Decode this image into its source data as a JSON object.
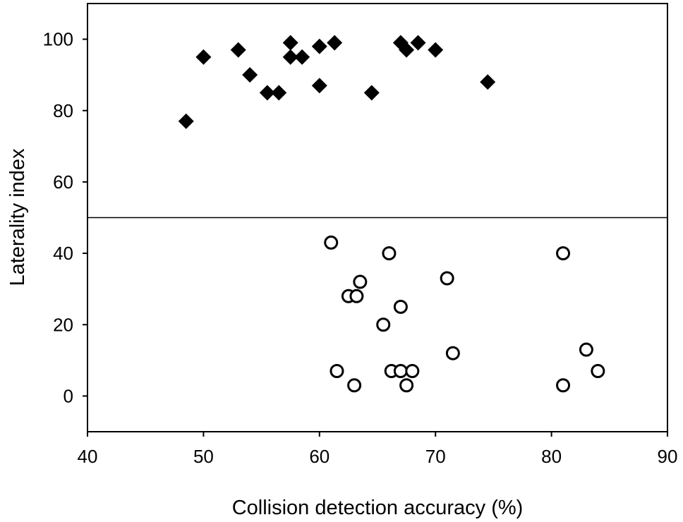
{
  "chart_data": {
    "type": "scatter",
    "xlabel": "Collision detection accuracy (%)",
    "ylabel": "Laterality index",
    "xlim": [
      40,
      90
    ],
    "ylim": [
      -10,
      110
    ],
    "xticks": [
      40,
      50,
      60,
      70,
      80,
      90
    ],
    "yticks": [
      0,
      20,
      40,
      60,
      80,
      100
    ],
    "grid": false,
    "reference_line": {
      "y": 50
    },
    "series": [
      {
        "marker": "filled-diamond",
        "color": "#000000",
        "points": [
          [
            48.5,
            77
          ],
          [
            50,
            95
          ],
          [
            53,
            97
          ],
          [
            54,
            90
          ],
          [
            55.5,
            85
          ],
          [
            56.5,
            85
          ],
          [
            57.5,
            99
          ],
          [
            57.5,
            95
          ],
          [
            58.5,
            95
          ],
          [
            60,
            98
          ],
          [
            60,
            87
          ],
          [
            61.3,
            99
          ],
          [
            64.5,
            85
          ],
          [
            67,
            99
          ],
          [
            67.5,
            97
          ],
          [
            68.5,
            99
          ],
          [
            70,
            97
          ],
          [
            74.5,
            88
          ]
        ]
      },
      {
        "marker": "open-circle",
        "color": "#000000",
        "points": [
          [
            61,
            43
          ],
          [
            66,
            40
          ],
          [
            81,
            40
          ],
          [
            71,
            33
          ],
          [
            63.5,
            32
          ],
          [
            62.5,
            28
          ],
          [
            63.2,
            28
          ],
          [
            67,
            25
          ],
          [
            65.5,
            20
          ],
          [
            71.5,
            12
          ],
          [
            83,
            13
          ],
          [
            61.5,
            7
          ],
          [
            66.2,
            7
          ],
          [
            67,
            7
          ],
          [
            68,
            7
          ],
          [
            84,
            7
          ],
          [
            63,
            3
          ],
          [
            67.5,
            3
          ],
          [
            81,
            3
          ]
        ]
      }
    ]
  }
}
